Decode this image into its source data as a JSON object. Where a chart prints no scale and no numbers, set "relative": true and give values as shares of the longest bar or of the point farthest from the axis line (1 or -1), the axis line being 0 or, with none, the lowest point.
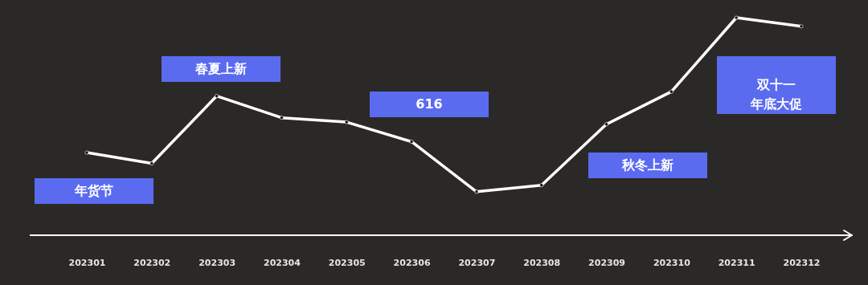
{
  "chart_data": {
    "type": "line",
    "relative": true,
    "marker": "circle",
    "line_style": "solid",
    "categories": [
      "202301",
      "202302",
      "202303",
      "202304",
      "202305",
      "202306",
      "202307",
      "202308",
      "202309",
      "202310",
      "202311",
      "202312"
    ],
    "series": [
      {
        "color": "#ffffff",
        "values": [
          0.38,
          0.33,
          0.64,
          0.54,
          0.52,
          0.43,
          0.2,
          0.23,
          0.51,
          0.66,
          1.0,
          0.96
        ]
      }
    ],
    "annotations": [
      "年货节",
      "春夏上新",
      "616",
      "秋冬上新",
      "双十一年底大促"
    ]
  }
}
